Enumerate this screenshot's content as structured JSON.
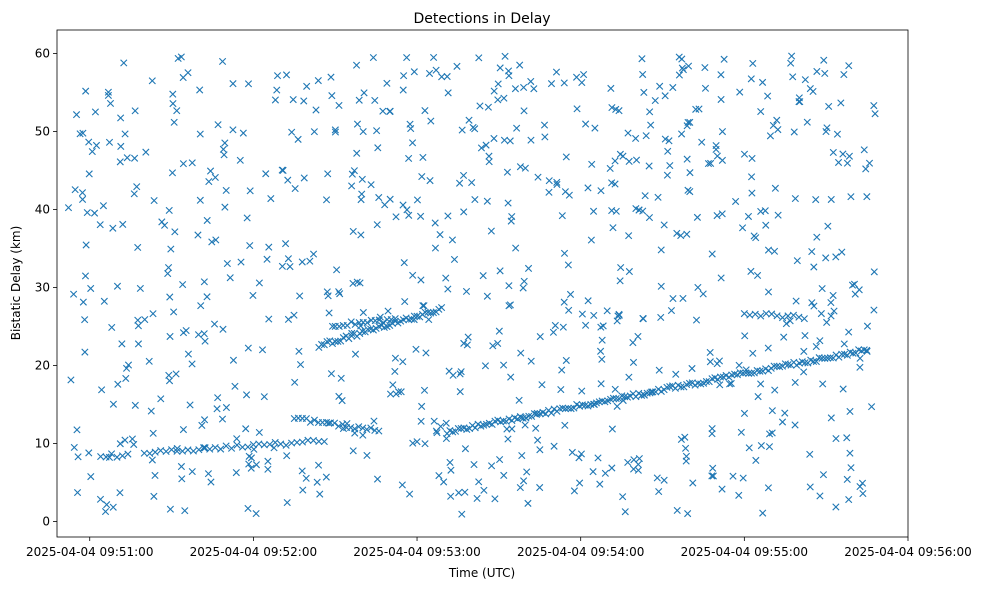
{
  "chart_data": {
    "type": "scatter",
    "title": "Detections in Delay",
    "xlabel": "Time (UTC)",
    "ylabel": "Bistatic Delay (km)",
    "marker": "x",
    "color": "#1f77b4",
    "grid": false,
    "xlim": [
      "2025-04-04 09:50:48",
      "2025-04-04 09:56:00"
    ],
    "ylim": [
      -2,
      63
    ],
    "x_ticks": [
      "2025-04-04 09:51:00",
      "2025-04-04 09:52:00",
      "2025-04-04 09:53:00",
      "2025-04-04 09:54:00",
      "2025-04-04 09:55:00",
      "2025-04-04 09:56:00"
    ],
    "y_ticks": [
      "0",
      "10",
      "20",
      "30",
      "40",
      "50",
      "60"
    ],
    "tracks": [
      {
        "start": "2025-04-04 09:51:04",
        "end": "2025-04-04 09:51:14",
        "count": 6,
        "y_start": 8.4,
        "y_end": 8.5
      },
      {
        "start": "2025-04-04 09:51:20",
        "end": "2025-04-04 09:52:26",
        "count": 34,
        "y_start": 8.8,
        "y_end": 10.3
      },
      {
        "start": "2025-04-04 09:52:15",
        "end": "2025-04-04 09:52:46",
        "count": 22,
        "y_start": 13.2,
        "y_end": 11.6
      },
      {
        "start": "2025-04-04 09:52:24",
        "end": "2025-04-04 09:53:09",
        "count": 46,
        "y_start": 22.5,
        "y_end": 27.2
      },
      {
        "start": "2025-04-04 09:52:30",
        "end": "2025-04-04 09:52:52",
        "count": 16,
        "y_start": 25.2,
        "y_end": 25.8
      },
      {
        "start": "2025-04-04 09:53:11",
        "end": "2025-04-04 09:55:45",
        "count": 150,
        "y_start": 11.5,
        "y_end": 22.0
      },
      {
        "start": "2025-04-04 09:55:00",
        "end": "2025-04-04 09:55:22",
        "count": 12,
        "y_start": 26.6,
        "y_end": 26.2
      }
    ],
    "scatter": {
      "start": "2025-04-04 09:50:52",
      "end": "2025-04-04 09:55:48",
      "count": 820,
      "y_range": [
        0.8,
        59.9
      ]
    }
  }
}
